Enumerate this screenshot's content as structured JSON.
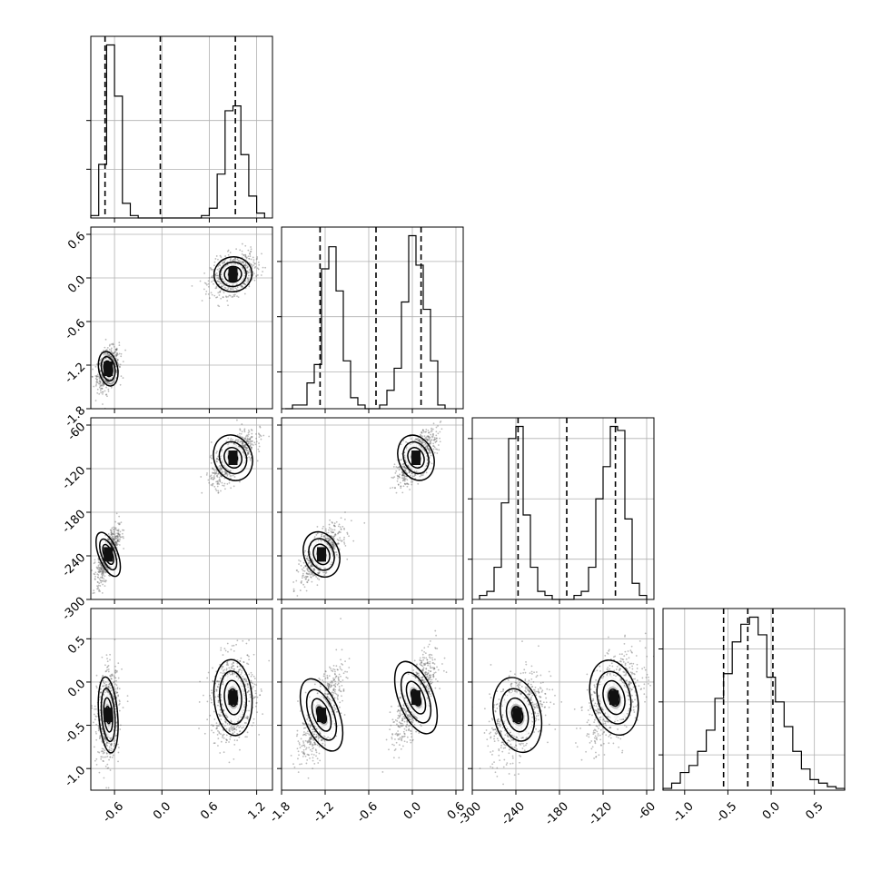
{
  "chart_data": {
    "type": "corner",
    "parameters": 4,
    "grid": true,
    "title": "",
    "param_ranges": [
      [
        -0.9,
        1.4
      ],
      [
        -1.8,
        0.7
      ],
      [
        -300,
        -50
      ],
      [
        -1.25,
        0.85
      ]
    ],
    "tick_labels": [
      [
        "-0.6",
        "0.0",
        "0.6",
        "1.2"
      ],
      [
        "-1.8",
        "-1.2",
        "-0.6",
        "0.0",
        "0.6"
      ],
      [
        "-300",
        "-240",
        "-180",
        "-120",
        "-60"
      ],
      [
        "-1.0",
        "-0.5",
        "0.0",
        "0.5"
      ]
    ],
    "tick_values": [
      [
        -0.6,
        0.0,
        0.6,
        1.2
      ],
      [
        -1.8,
        -1.2,
        -0.6,
        0.0,
        0.6
      ],
      [
        -300,
        -240,
        -180,
        -120,
        -60
      ],
      [
        -1.0,
        -0.5,
        0.0,
        0.5
      ]
    ],
    "diag_yticks": [
      [
        2,
        4
      ],
      [
        1,
        2.5,
        4
      ],
      [
        1,
        2.5,
        4
      ],
      [
        1,
        2.5,
        4
      ]
    ],
    "quantiles": [
      [
        -0.72,
        -0.02,
        0.93
      ],
      [
        -1.27,
        -0.5,
        0.12
      ],
      [
        -237,
        -170,
        -103
      ],
      [
        -0.55,
        -0.27,
        0.02
      ]
    ],
    "histograms": [
      {
        "edges": [
          -0.9,
          -0.8,
          -0.7,
          -0.6,
          -0.5,
          -0.4,
          -0.3,
          -0.2,
          -0.1,
          0.0,
          0.1,
          0.2,
          0.3,
          0.4,
          0.5,
          0.6,
          0.7,
          0.8,
          0.9,
          1.0,
          1.1,
          1.2,
          1.3
        ],
        "counts": [
          0.1,
          2.2,
          7.1,
          5.0,
          0.6,
          0.1,
          0,
          0,
          0,
          0,
          0,
          0,
          0,
          0,
          0.1,
          0.4,
          1.8,
          4.4,
          4.6,
          2.6,
          0.9,
          0.2
        ]
      },
      {
        "edges": [
          -1.75,
          -1.65,
          -1.55,
          -1.45,
          -1.35,
          -1.25,
          -1.15,
          -1.05,
          -0.95,
          -0.85,
          -0.75,
          -0.65,
          -0.55,
          -0.45,
          -0.35,
          -0.25,
          -0.15,
          -0.05,
          0.05,
          0.15,
          0.25,
          0.35,
          0.45
        ],
        "counts": [
          0,
          0.1,
          0.1,
          0.7,
          1.2,
          3.8,
          4.4,
          3.2,
          1.3,
          0.3,
          0.1,
          0,
          0,
          0.1,
          0.5,
          1.1,
          2.9,
          4.7,
          3.9,
          2.7,
          1.3,
          0.1
        ]
      },
      {
        "edges": [
          -290,
          -280,
          -270,
          -260,
          -250,
          -240,
          -230,
          -220,
          -210,
          -200,
          -190,
          -180,
          -170,
          -160,
          -150,
          -140,
          -130,
          -120,
          -110,
          -100,
          -90,
          -80,
          -70,
          -60
        ],
        "counts": [
          0.1,
          0.2,
          0.8,
          2.4,
          4.0,
          4.3,
          2.1,
          0.8,
          0.2,
          0.1,
          0,
          0,
          0,
          0.1,
          0.2,
          0.8,
          2.5,
          3.3,
          4.3,
          4.2,
          2.0,
          0.4,
          0.1
        ]
      },
      {
        "edges": [
          -1.25,
          -1.15,
          -1.05,
          -0.95,
          -0.85,
          -0.75,
          -0.65,
          -0.55,
          -0.45,
          -0.35,
          -0.25,
          -0.15,
          -0.05,
          0.05,
          0.15,
          0.25,
          0.35,
          0.45,
          0.55,
          0.65,
          0.75,
          0.85
        ],
        "counts": [
          0.05,
          0.2,
          0.5,
          0.7,
          1.1,
          1.7,
          2.6,
          3.3,
          4.2,
          4.7,
          4.9,
          4.4,
          3.2,
          2.5,
          1.8,
          1.1,
          0.6,
          0.3,
          0.2,
          0.1,
          0.05
        ]
      }
    ],
    "clusters": [
      {
        "mean": [
          -0.68,
          -1.25,
          -238,
          -0.38
        ],
        "std": [
          0.06,
          0.12,
          16,
          0.22
        ]
      },
      {
        "mean": [
          0.9,
          0.05,
          -105,
          -0.18
        ],
        "std": [
          0.12,
          0.12,
          16,
          0.22
        ]
      }
    ],
    "correlations": [
      [
        0,
        0.35,
        0.7,
        0.15
      ],
      [
        0.35,
        0,
        0.7,
        0.7
      ],
      [
        0.7,
        0.7,
        0,
        0.45
      ],
      [
        0.15,
        0.7,
        0.45,
        0
      ]
    ],
    "colors": {
      "contour": "#000000",
      "points": "#6b6b6b",
      "grid": "#b0b0b0",
      "axes": "#000000"
    }
  }
}
